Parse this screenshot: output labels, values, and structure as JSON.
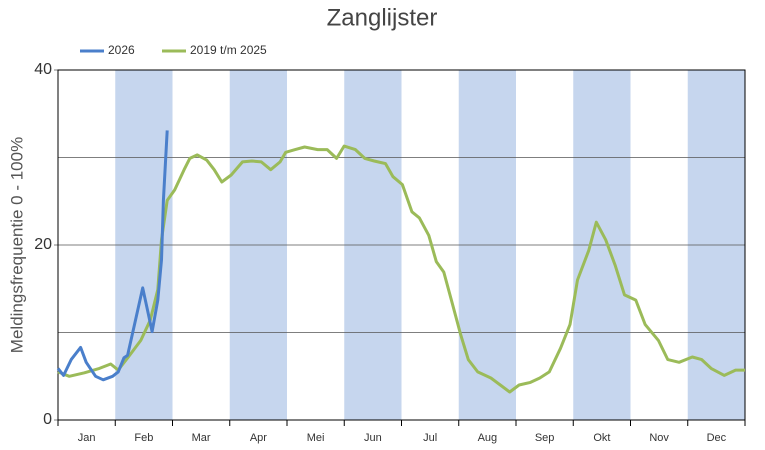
{
  "chart_data": {
    "type": "line",
    "title": "Zanglijster",
    "y_label": "Meldingsfrequentie 0 - 100%",
    "categories": [
      "Jan",
      "Feb",
      "Mar",
      "Apr",
      "Mei",
      "Jun",
      "Jul",
      "Aug",
      "Sep",
      "Okt",
      "Nov",
      "Dec"
    ],
    "band_color": "#c6d6ee",
    "xlim": [
      0,
      365
    ],
    "ylim": [
      0,
      40
    ],
    "yticks": [
      0,
      20,
      40
    ],
    "minor_yticks": [
      10,
      30
    ],
    "grid": true,
    "legend": "top-left",
    "series": [
      {
        "name": "2026",
        "color": "#4a7fcb",
        "x": [
          0,
          3,
          7,
          12,
          15,
          20,
          24,
          29,
          32,
          35,
          37,
          40,
          45,
          47,
          50,
          53,
          55,
          56,
          58
        ],
        "values": [
          5.9,
          5.1,
          6.9,
          8.3,
          6.6,
          5.0,
          4.6,
          5.0,
          5.5,
          7.1,
          7.4,
          10.3,
          15.1,
          13.1,
          10.1,
          13.7,
          18.3,
          25.1,
          33.1
        ]
      },
      {
        "name": "2019 t/m 2025",
        "color": "#9bbb59",
        "x": [
          0,
          6,
          14,
          22,
          28,
          32,
          37,
          44,
          49,
          53,
          55,
          58,
          62,
          67,
          70,
          74,
          79,
          83,
          87,
          92,
          98,
          103,
          108,
          113,
          118,
          121,
          126,
          131,
          138,
          143,
          148,
          152,
          158,
          163,
          168,
          174,
          178,
          183,
          188,
          192,
          197,
          201,
          205,
          209,
          214,
          218,
          223,
          230,
          235,
          240,
          245,
          251,
          256,
          261,
          267,
          272,
          276,
          282,
          286,
          291,
          296,
          301,
          307,
          312,
          319,
          324,
          330,
          337,
          342,
          347,
          354,
          360,
          365
        ],
        "values": [
          5.5,
          5.0,
          5.4,
          5.9,
          6.4,
          5.7,
          7.1,
          9.1,
          11.4,
          14.9,
          20.6,
          25.1,
          26.3,
          28.6,
          29.9,
          30.3,
          29.7,
          28.6,
          27.2,
          28.0,
          29.5,
          29.6,
          29.5,
          28.6,
          29.5,
          30.6,
          30.9,
          31.2,
          30.9,
          30.9,
          29.9,
          31.3,
          30.9,
          29.9,
          29.6,
          29.3,
          27.8,
          26.9,
          23.8,
          23.1,
          21.1,
          18.1,
          16.9,
          13.7,
          9.7,
          6.9,
          5.5,
          4.8,
          4.0,
          3.2,
          4.0,
          4.3,
          4.8,
          5.5,
          8.2,
          10.9,
          16.0,
          19.4,
          22.6,
          20.6,
          17.7,
          14.3,
          13.7,
          10.9,
          9.1,
          6.9,
          6.6,
          7.2,
          6.9,
          5.9,
          5.1,
          5.7,
          5.7
        ]
      }
    ]
  }
}
